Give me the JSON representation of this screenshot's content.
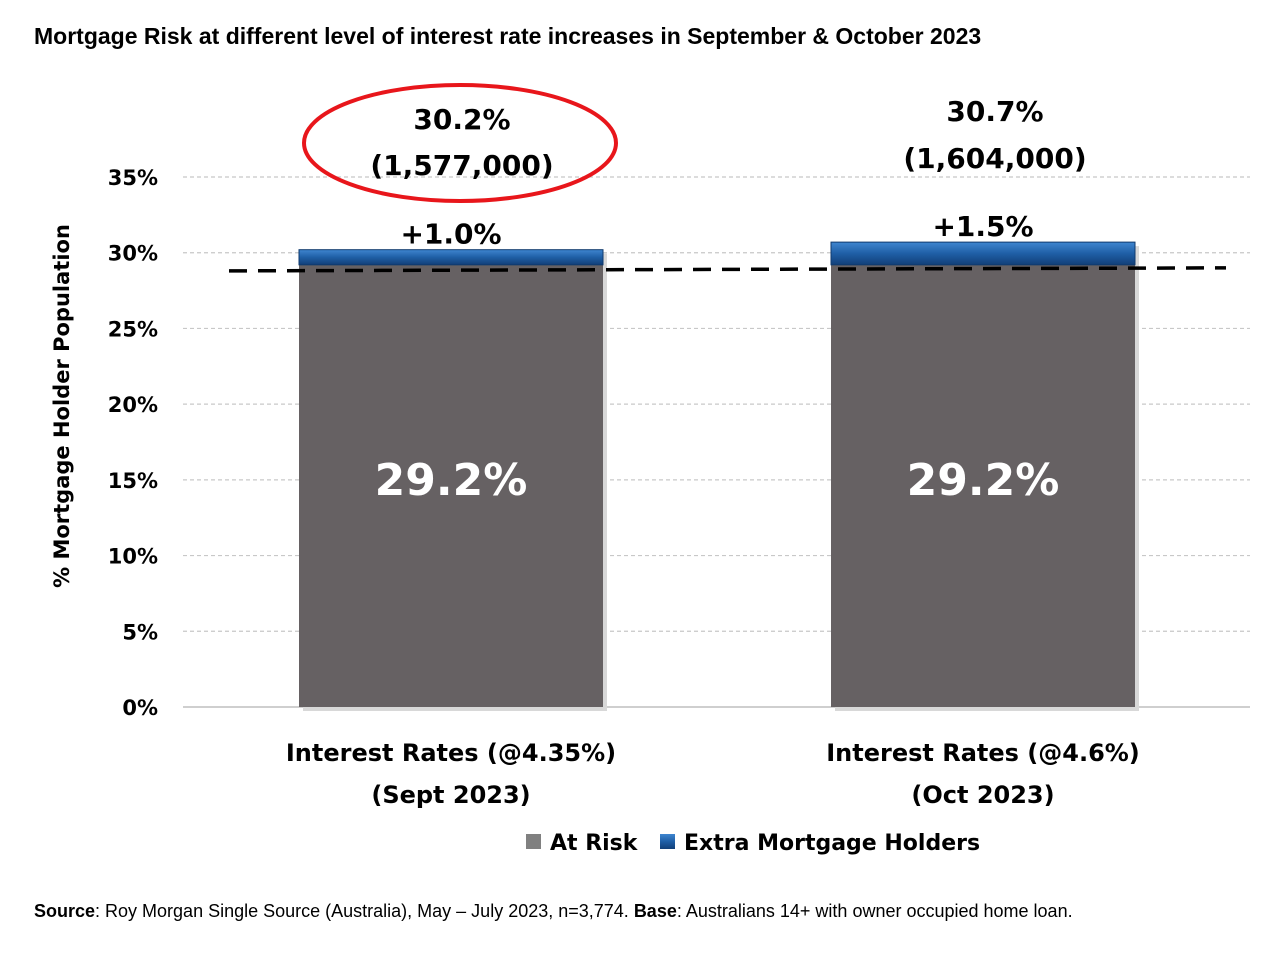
{
  "chart_data": {
    "type": "bar",
    "stacked": true,
    "title": "Mortgage Risk at different level of interest rate increases in September & October 2023",
    "ylabel": "% Mortgage Holder Population",
    "ylim": [
      0,
      35
    ],
    "yticks": [
      "0%",
      "5%",
      "10%",
      "15%",
      "20%",
      "25%",
      "30%",
      "35%"
    ],
    "ytick_values": [
      0,
      5,
      10,
      15,
      20,
      25,
      30,
      35
    ],
    "grid": true,
    "categories": [
      [
        "Interest Rates (@4.35%)",
        "(Sept 2023)"
      ],
      [
        "Interest Rates   (@4.6%)",
        "(Oct 2023)"
      ]
    ],
    "series": [
      {
        "name": "At Risk",
        "color": "#666163",
        "values": [
          29.2,
          29.2
        ],
        "labels": [
          "29.2%",
          "29.2%"
        ]
      },
      {
        "name": "Extra Mortgage Holders",
        "color": "#1f5fa6",
        "values": [
          1.0,
          1.5
        ],
        "labels": [
          "+1.0%",
          "+1.5%"
        ]
      }
    ],
    "totals": [
      {
        "pct": "30.2%",
        "count": "(1,577,000)",
        "highlighted": true
      },
      {
        "pct": "30.7%",
        "count": "(1,604,000)",
        "highlighted": false
      }
    ],
    "reference_line": {
      "style": "dashed",
      "y_start": 28.8,
      "y_end": 29.0
    },
    "legend_position": "bottom"
  },
  "source": {
    "label1": "Source",
    "text1": ": Roy Morgan Single Source (Australia), May – July 2023, n=3,774. ",
    "label2": "Base",
    "text2": ": Australians 14+ with owner occupied home loan."
  },
  "colors": {
    "highlight_ellipse": "#e8161b",
    "grid": "#c8c8c8"
  }
}
